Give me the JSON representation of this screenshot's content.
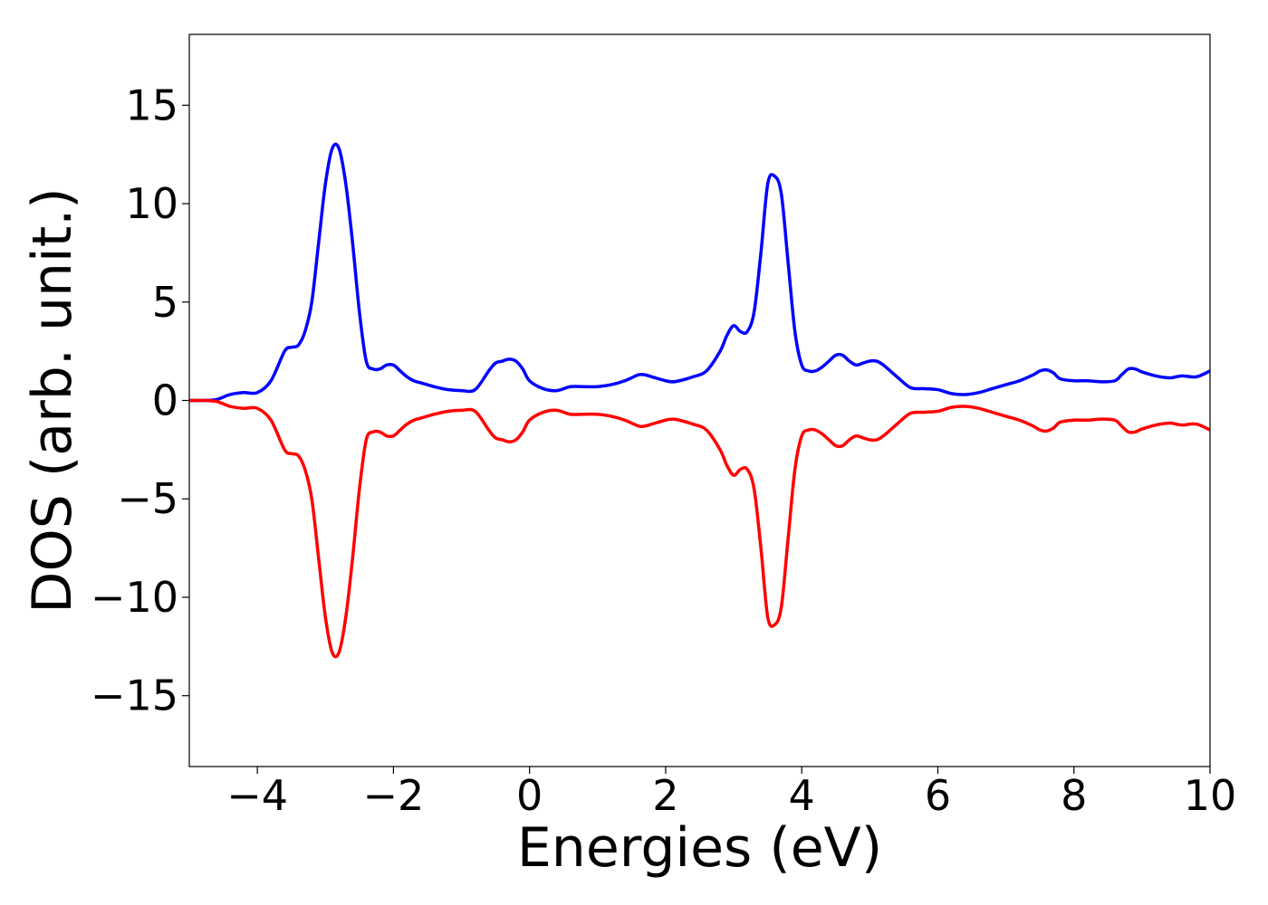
{
  "chart_data": {
    "type": "line",
    "title": "",
    "xlabel": "Energies (eV)",
    "ylabel": "DOS (arb. unit.)",
    "xlim": [
      -5,
      10
    ],
    "ylim": [
      -18.6,
      18.6
    ],
    "grid": false,
    "legend": "none",
    "x_ticks": [
      -4,
      -2,
      0,
      2,
      4,
      6,
      8,
      10
    ],
    "x_tick_labels": [
      "−4",
      "−2",
      "0",
      "2",
      "4",
      "6",
      "8",
      "10"
    ],
    "y_ticks": [
      15,
      10,
      5,
      0,
      -5,
      -10,
      -15
    ],
    "y_tick_labels": [
      "15",
      "10",
      "5",
      "0",
      "−5",
      "−10",
      "−15"
    ],
    "series": [
      {
        "color": "#0000ff",
        "x": [
          -5.0,
          -4.8,
          -4.6,
          -4.4,
          -4.2,
          -4.0,
          -3.8,
          -3.6,
          -3.5,
          -3.4,
          -3.3,
          -3.2,
          -3.1,
          -3.0,
          -2.9,
          -2.8,
          -2.7,
          -2.6,
          -2.5,
          -2.4,
          -2.3,
          -2.2,
          -2.1,
          -2.0,
          -1.9,
          -1.8,
          -1.7,
          -1.6,
          -1.4,
          -1.2,
          -1.0,
          -0.8,
          -0.6,
          -0.5,
          -0.4,
          -0.3,
          -0.2,
          -0.1,
          0.0,
          0.2,
          0.4,
          0.6,
          0.8,
          1.0,
          1.2,
          1.4,
          1.6,
          1.7,
          1.8,
          2.0,
          2.1,
          2.2,
          2.4,
          2.6,
          2.8,
          2.9,
          3.0,
          3.1,
          3.2,
          3.3,
          3.4,
          3.5,
          3.6,
          3.7,
          3.8,
          3.9,
          4.0,
          4.1,
          4.2,
          4.3,
          4.4,
          4.5,
          4.6,
          4.7,
          4.8,
          4.9,
          5.0,
          5.1,
          5.2,
          5.4,
          5.6,
          5.8,
          6.0,
          6.2,
          6.4,
          6.6,
          6.8,
          7.0,
          7.2,
          7.4,
          7.5,
          7.6,
          7.7,
          7.8,
          8.0,
          8.2,
          8.4,
          8.6,
          8.7,
          8.8,
          8.9,
          9.0,
          9.2,
          9.4,
          9.5,
          9.6,
          9.8,
          10.0
        ],
        "y": [
          0.0,
          0.0,
          0.05,
          0.3,
          0.4,
          0.4,
          1.0,
          2.5,
          2.7,
          2.8,
          3.5,
          5.0,
          8.0,
          11.0,
          12.8,
          12.8,
          11.0,
          8.0,
          4.5,
          2.0,
          1.6,
          1.6,
          1.8,
          1.8,
          1.5,
          1.2,
          1.0,
          0.9,
          0.7,
          0.55,
          0.5,
          0.55,
          1.5,
          1.9,
          2.0,
          2.1,
          2.0,
          1.6,
          1.0,
          0.6,
          0.5,
          0.7,
          0.7,
          0.7,
          0.8,
          1.0,
          1.3,
          1.3,
          1.2,
          1.0,
          0.95,
          1.0,
          1.2,
          1.5,
          2.5,
          3.3,
          3.8,
          3.5,
          3.5,
          4.5,
          7.5,
          11.0,
          11.4,
          10.5,
          7.0,
          3.5,
          1.8,
          1.5,
          1.5,
          1.7,
          2.0,
          2.3,
          2.3,
          2.0,
          1.8,
          1.9,
          2.0,
          2.0,
          1.8,
          1.2,
          0.65,
          0.6,
          0.55,
          0.35,
          0.3,
          0.4,
          0.6,
          0.8,
          1.0,
          1.3,
          1.5,
          1.55,
          1.4,
          1.1,
          1.0,
          1.0,
          0.95,
          1.0,
          1.3,
          1.6,
          1.6,
          1.45,
          1.25,
          1.15,
          1.2,
          1.25,
          1.2,
          1.5
        ]
      },
      {
        "color": "#ff0000",
        "x": [
          -5.0,
          -4.8,
          -4.6,
          -4.4,
          -4.2,
          -4.0,
          -3.8,
          -3.6,
          -3.5,
          -3.4,
          -3.3,
          -3.2,
          -3.1,
          -3.0,
          -2.9,
          -2.8,
          -2.7,
          -2.6,
          -2.5,
          -2.4,
          -2.3,
          -2.2,
          -2.1,
          -2.0,
          -1.9,
          -1.8,
          -1.7,
          -1.6,
          -1.4,
          -1.2,
          -1.0,
          -0.8,
          -0.6,
          -0.5,
          -0.4,
          -0.3,
          -0.2,
          -0.1,
          0.0,
          0.2,
          0.4,
          0.6,
          0.8,
          1.0,
          1.2,
          1.4,
          1.6,
          1.7,
          1.8,
          2.0,
          2.1,
          2.2,
          2.4,
          2.6,
          2.8,
          2.9,
          3.0,
          3.1,
          3.2,
          3.3,
          3.4,
          3.5,
          3.6,
          3.7,
          3.8,
          3.9,
          4.0,
          4.1,
          4.2,
          4.3,
          4.4,
          4.5,
          4.6,
          4.7,
          4.8,
          4.9,
          5.0,
          5.1,
          5.2,
          5.4,
          5.6,
          5.8,
          6.0,
          6.2,
          6.4,
          6.6,
          6.8,
          7.0,
          7.2,
          7.4,
          7.5,
          7.6,
          7.7,
          7.8,
          8.0,
          8.2,
          8.4,
          8.6,
          8.7,
          8.8,
          8.9,
          9.0,
          9.2,
          9.4,
          9.5,
          9.6,
          9.8,
          10.0
        ],
        "y": [
          0.0,
          0.0,
          -0.05,
          -0.3,
          -0.4,
          -0.4,
          -1.0,
          -2.5,
          -2.7,
          -2.8,
          -3.5,
          -5.0,
          -8.0,
          -11.0,
          -12.8,
          -12.8,
          -11.0,
          -8.0,
          -4.5,
          -2.0,
          -1.6,
          -1.6,
          -1.8,
          -1.8,
          -1.5,
          -1.2,
          -1.0,
          -0.9,
          -0.7,
          -0.55,
          -0.5,
          -0.55,
          -1.5,
          -1.9,
          -2.0,
          -2.1,
          -2.0,
          -1.6,
          -1.0,
          -0.6,
          -0.5,
          -0.7,
          -0.7,
          -0.7,
          -0.8,
          -1.0,
          -1.3,
          -1.3,
          -1.2,
          -1.0,
          -0.95,
          -1.0,
          -1.2,
          -1.5,
          -2.5,
          -3.3,
          -3.8,
          -3.5,
          -3.5,
          -4.5,
          -7.5,
          -11.0,
          -11.4,
          -10.5,
          -7.0,
          -3.5,
          -1.8,
          -1.5,
          -1.5,
          -1.7,
          -2.0,
          -2.3,
          -2.3,
          -2.0,
          -1.8,
          -1.9,
          -2.0,
          -2.0,
          -1.8,
          -1.2,
          -0.65,
          -0.6,
          -0.55,
          -0.35,
          -0.3,
          -0.4,
          -0.6,
          -0.8,
          -1.0,
          -1.3,
          -1.5,
          -1.55,
          -1.4,
          -1.1,
          -1.0,
          -1.0,
          -0.95,
          -1.0,
          -1.3,
          -1.6,
          -1.6,
          -1.45,
          -1.25,
          -1.15,
          -1.2,
          -1.25,
          -1.2,
          -1.5
        ]
      }
    ]
  }
}
